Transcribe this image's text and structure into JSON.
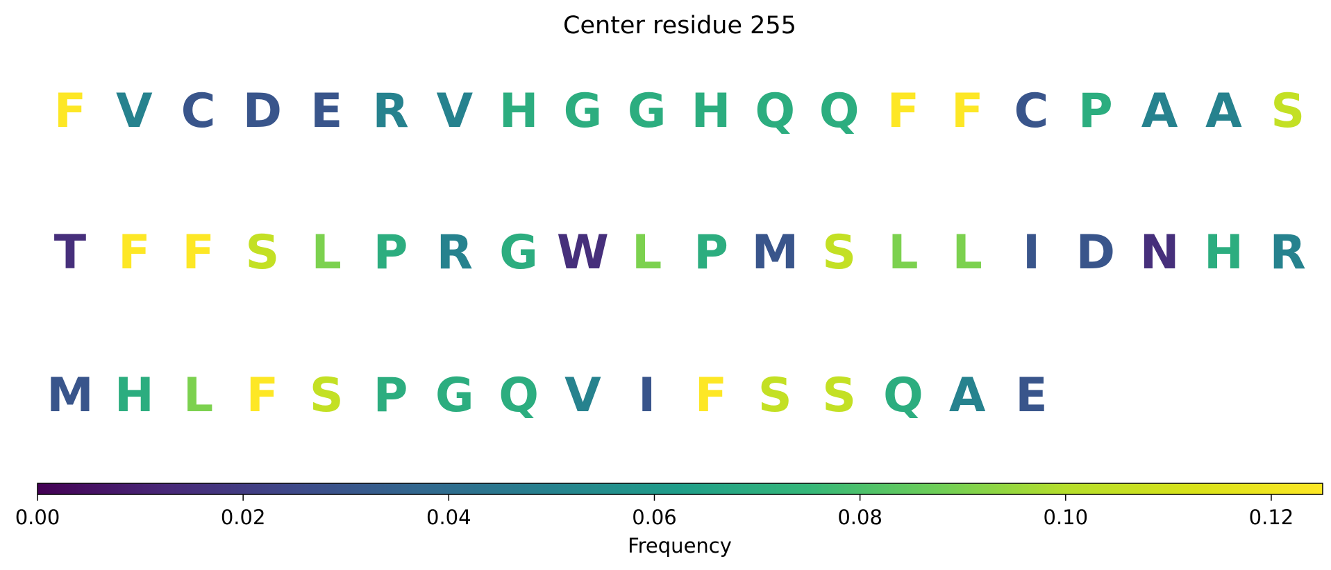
{
  "chart_data": {
    "type": "sequence-heatmap",
    "title": "Center residue 255",
    "rows": [
      {
        "letters": [
          "F",
          "V",
          "C",
          "D",
          "E",
          "R",
          "V",
          "H",
          "G",
          "G",
          "H",
          "Q",
          "Q",
          "F",
          "F",
          "C",
          "P",
          "A",
          "A",
          "S"
        ],
        "values": [
          0.125,
          0.05,
          0.03,
          0.03,
          0.03,
          0.05,
          0.05,
          0.07,
          0.07,
          0.07,
          0.07,
          0.07,
          0.07,
          0.125,
          0.125,
          0.03,
          0.07,
          0.05,
          0.05,
          0.105
        ]
      },
      {
        "letters": [
          "T",
          "F",
          "F",
          "S",
          "L",
          "P",
          "R",
          "G",
          "W",
          "L",
          "P",
          "M",
          "S",
          "L",
          "L",
          "I",
          "D",
          "N",
          "H",
          "R"
        ],
        "values": [
          0.015,
          0.125,
          0.125,
          0.105,
          0.09,
          0.07,
          0.05,
          0.07,
          0.015,
          0.09,
          0.07,
          0.03,
          0.105,
          0.09,
          0.09,
          0.03,
          0.03,
          0.015,
          0.07,
          0.05
        ]
      },
      {
        "letters": [
          "M",
          "H",
          "L",
          "F",
          "S",
          "P",
          "G",
          "Q",
          "V",
          "I",
          "F",
          "S",
          "S",
          "Q",
          "A",
          "E"
        ],
        "values": [
          0.03,
          0.07,
          0.09,
          0.125,
          0.105,
          0.07,
          0.07,
          0.07,
          0.05,
          0.03,
          0.125,
          0.105,
          0.105,
          0.07,
          0.05,
          0.03
        ]
      }
    ],
    "colorbar": {
      "colormap": "viridis",
      "min": 0.0,
      "max": 0.125,
      "ticks": [
        0.0,
        0.02,
        0.04,
        0.06,
        0.08,
        0.1,
        0.12
      ],
      "tick_labels": [
        "0.00",
        "0.02",
        "0.04",
        "0.06",
        "0.08",
        "0.10",
        "0.12"
      ],
      "label": "Frequency"
    }
  }
}
